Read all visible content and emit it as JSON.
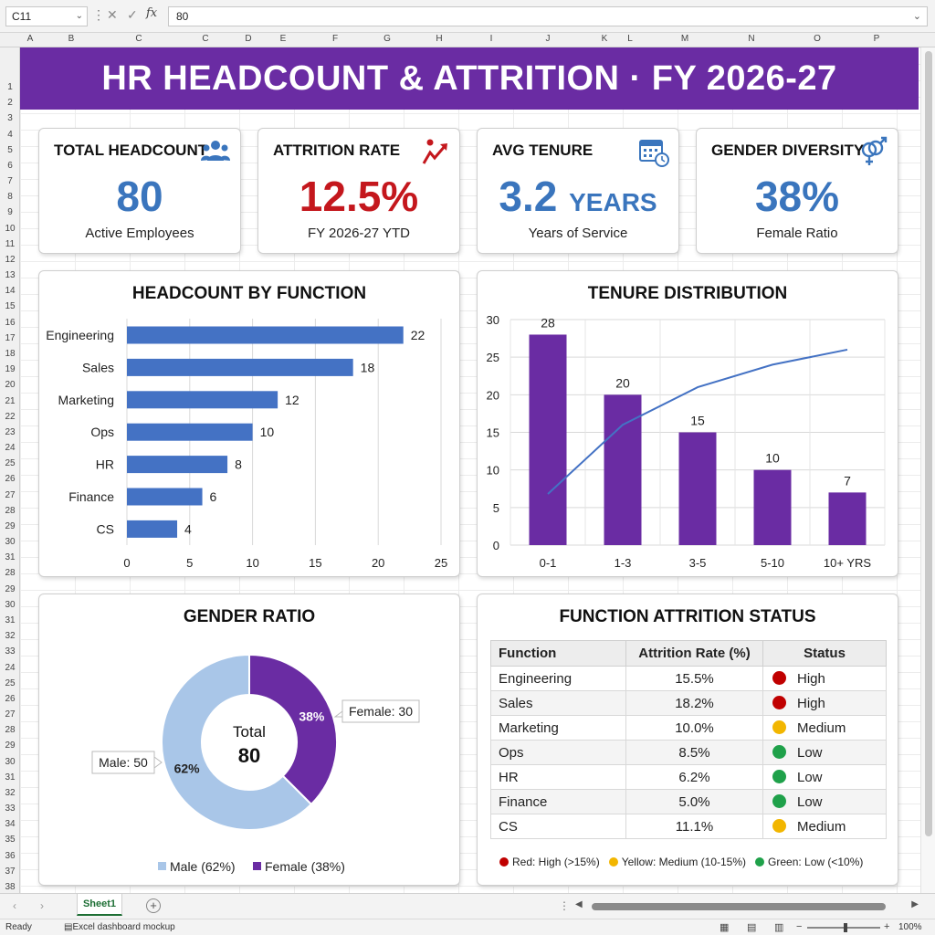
{
  "formula_bar": {
    "name_box": "C11",
    "value": "80",
    "fx": "fx"
  },
  "columns": [
    "A",
    "B",
    "C",
    "C",
    "D",
    "E",
    "F",
    "G",
    "H",
    "I",
    "J",
    "K",
    "L",
    "M",
    "N",
    "O",
    "P"
  ],
  "rows": [
    "1",
    "2",
    "3",
    "4",
    "5",
    "6",
    "7",
    "8",
    "9",
    "10",
    "11",
    "12",
    "13",
    "14",
    "15",
    "16",
    "17",
    "18",
    "19",
    "20",
    "21",
    "22",
    "23",
    "24",
    "25",
    "26",
    "27",
    "28",
    "29",
    "30",
    "31",
    "28",
    "29",
    "30",
    "31",
    "32",
    "33",
    "24",
    "25",
    "26",
    "27",
    "28",
    "29",
    "30",
    "31",
    "32",
    "33",
    "34",
    "35",
    "36",
    "37",
    "38"
  ],
  "banner": {
    "title": "HR HEADCOUNT & ATTRITION · FY 2026-27",
    "color": "#6a2ca3"
  },
  "kpis": {
    "headcount": {
      "title": "TOTAL HEADCOUNT",
      "value": "80",
      "sub": "Active Employees",
      "icon": "people-icon",
      "color": "#3a75bd"
    },
    "attrition": {
      "title": "ATTRITION RATE",
      "value": "12.5%",
      "sub": "FY 2026-27 YTD",
      "icon": "trend-up-icon",
      "color": "#c4171d"
    },
    "tenure": {
      "title": "AVG TENURE",
      "value": "3.2",
      "unit": "YEARS",
      "sub": "Years of Service",
      "icon": "calendar-clock-icon",
      "color": "#3a75bd"
    },
    "gender": {
      "title": "GENDER DIVERSITY",
      "value": "38%",
      "sub": "Female Ratio",
      "icon": "gender-icon",
      "color": "#3a75bd"
    }
  },
  "charts": {
    "headcount_title": "HEADCOUNT BY FUNCTION",
    "tenure_title": "TENURE DISTRIBUTION",
    "gender_title": "GENDER RATIO",
    "gender_center_label": "Total",
    "gender_center_value": "80"
  },
  "chart_data": [
    {
      "type": "bar",
      "orientation": "horizontal",
      "title": "HEADCOUNT BY FUNCTION",
      "categories": [
        "Engineering",
        "Sales",
        "Marketing",
        "Ops",
        "HR",
        "Finance",
        "CS"
      ],
      "values": [
        22,
        18,
        12,
        10,
        8,
        6,
        4
      ],
      "xlim": [
        0,
        25
      ],
      "x_ticks": [
        "0",
        "5",
        "10",
        "15",
        "20",
        "25"
      ],
      "color": "#4472c4",
      "grid": true
    },
    {
      "type": "bar",
      "title": "TENURE DISTRIBUTION",
      "categories": [
        "0-1",
        "1-3",
        "3-5",
        "5-10",
        "10+ YRS"
      ],
      "values": [
        28,
        20,
        15,
        10,
        7
      ],
      "line_values": [
        6.8,
        16,
        21,
        24,
        26
      ],
      "ylim": [
        0,
        30
      ],
      "y_ticks": [
        "0",
        "5",
        "10",
        "15",
        "20",
        "25",
        "30"
      ],
      "color": "#6a2ca3",
      "line_color": "#4472c4",
      "grid": true
    },
    {
      "type": "pie",
      "title": "GENDER RATIO",
      "donut": true,
      "slices": [
        {
          "name": "Male",
          "value": 50,
          "percent": "62%",
          "callout": "Male: 50",
          "legend": "Male (62%)",
          "color": "#a9c6e8"
        },
        {
          "name": "Female",
          "value": 30,
          "percent": "38%",
          "callout": "Female: 30",
          "legend": "Female (38%)",
          "color": "#6a2ca3"
        }
      ],
      "legend_position": "bottom"
    }
  ],
  "table": {
    "title": "FUNCTION ATTRITION STATUS",
    "headers": [
      "Function",
      "Attrition Rate (%)",
      "Status"
    ],
    "rows": [
      {
        "function": "Engineering",
        "rate": "15.5%",
        "status": "High",
        "color": "#c00000"
      },
      {
        "function": "Sales",
        "rate": "18.2%",
        "status": "High",
        "color": "#c00000"
      },
      {
        "function": "Marketing",
        "rate": "10.0%",
        "status": "Medium",
        "color": "#f2b600"
      },
      {
        "function": "Ops",
        "rate": "8.5%",
        "status": "Low",
        "color": "#1fa14a"
      },
      {
        "function": "HR",
        "rate": "6.2%",
        "status": "Low",
        "color": "#1fa14a"
      },
      {
        "function": "Finance",
        "rate": "5.0%",
        "status": "Low",
        "color": "#1fa14a"
      },
      {
        "function": "CS",
        "rate": "11.1%",
        "status": "Medium",
        "color": "#f2b600"
      }
    ],
    "legend": [
      {
        "label": "Red: High (>15%)",
        "color": "#c00000"
      },
      {
        "label": "Yellow: Medium (10-15%)",
        "color": "#f2b600"
      },
      {
        "label": "Green: Low (<10%)",
        "color": "#1fa14a"
      }
    ]
  },
  "tabs": {
    "sheet": "Sheet1",
    "add": "+"
  },
  "status_bar": {
    "ready": "Ready",
    "mockup": "Excel dashboard mockup",
    "zoom": "100%"
  }
}
